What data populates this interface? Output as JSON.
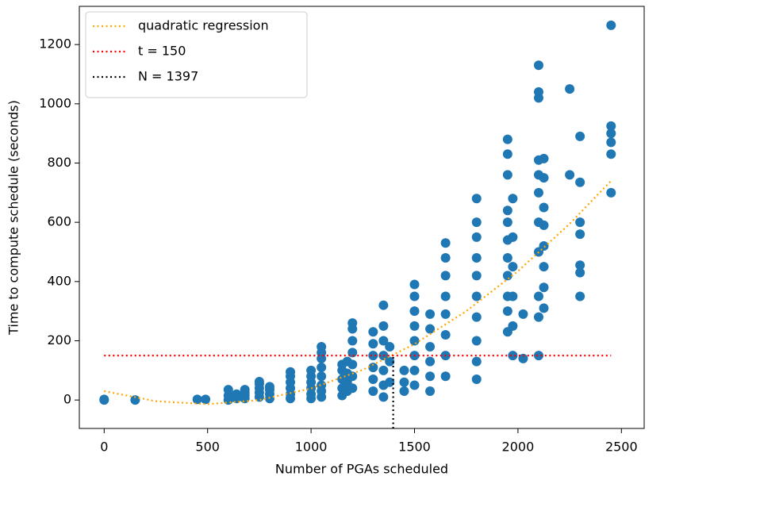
{
  "chart_data": {
    "type": "scatter",
    "xlabel": "Number of PGAs scheduled",
    "ylabel": "Time to compute schedule (seconds)",
    "xlim": [
      -120,
      2610
    ],
    "ylim": [
      -96,
      1329
    ],
    "xticks": [
      0,
      500,
      1000,
      1500,
      2000,
      2500
    ],
    "yticks": [
      0,
      200,
      400,
      600,
      800,
      1000,
      1200
    ],
    "legend": "upper left",
    "series": [
      {
        "kind": "scatter",
        "color": "#1f77b4",
        "x": [
          0,
          0,
          150,
          450,
          490,
          600,
          600,
          600,
          640,
          640,
          680,
          680,
          680,
          680,
          750,
          750,
          750,
          750,
          750,
          800,
          800,
          800,
          800,
          900,
          900,
          900,
          900,
          900,
          900,
          1000,
          1000,
          1000,
          1000,
          1000,
          1000,
          1050,
          1050,
          1050,
          1050,
          1050,
          1050,
          1050,
          1050,
          1150,
          1150,
          1150,
          1150,
          1150,
          1175,
          1175,
          1175,
          1175,
          1200,
          1200,
          1200,
          1200,
          1200,
          1200,
          1200,
          1300,
          1300,
          1300,
          1300,
          1300,
          1300,
          1350,
          1350,
          1350,
          1350,
          1350,
          1350,
          1350,
          1380,
          1380,
          1380,
          1450,
          1450,
          1450,
          1500,
          1500,
          1500,
          1500,
          1500,
          1500,
          1500,
          1500,
          1575,
          1575,
          1575,
          1575,
          1575,
          1575,
          1650,
          1650,
          1650,
          1650,
          1650,
          1650,
          1650,
          1650,
          1800,
          1800,
          1800,
          1800,
          1800,
          1800,
          1800,
          1800,
          1800,
          1800,
          1950,
          1950,
          1950,
          1950,
          1950,
          1950,
          1950,
          1950,
          1950,
          1950,
          1950,
          1975,
          1975,
          1975,
          1975,
          1975,
          1975,
          2025,
          2025,
          2100,
          2100,
          2100,
          2100,
          2100,
          2100,
          2100,
          2100,
          2100,
          2100,
          2100,
          2125,
          2125,
          2125,
          2125,
          2125,
          2125,
          2125,
          2125,
          2250,
          2250,
          2300,
          2300,
          2300,
          2300,
          2300,
          2300,
          2300,
          2450,
          2450,
          2450,
          2450,
          2450,
          2450
        ],
        "values": [
          0,
          2,
          0,
          2,
          2,
          0,
          15,
          35,
          5,
          20,
          5,
          15,
          25,
          35,
          10,
          25,
          40,
          55,
          62,
          5,
          20,
          35,
          45,
          5,
          20,
          40,
          60,
          80,
          95,
          5,
          20,
          40,
          60,
          80,
          100,
          10,
          30,
          50,
          80,
          110,
          140,
          160,
          180,
          15,
          40,
          70,
          100,
          120,
          30,
          60,
          90,
          130,
          40,
          80,
          120,
          160,
          200,
          240,
          260,
          30,
          70,
          110,
          150,
          190,
          230,
          10,
          50,
          100,
          150,
          200,
          250,
          320,
          60,
          130,
          180,
          30,
          60,
          100,
          50,
          100,
          150,
          200,
          250,
          300,
          350,
          390,
          30,
          80,
          130,
          180,
          240,
          290,
          80,
          150,
          220,
          290,
          350,
          420,
          480,
          530,
          70,
          130,
          200,
          280,
          350,
          420,
          480,
          550,
          600,
          680,
          230,
          300,
          350,
          420,
          480,
          540,
          600,
          640,
          760,
          830,
          880,
          150,
          250,
          350,
          450,
          550,
          680,
          140,
          290,
          150,
          280,
          350,
          500,
          600,
          700,
          760,
          810,
          1020,
          1040,
          1130,
          310,
          380,
          450,
          520,
          590,
          650,
          750,
          815,
          760,
          1050,
          350,
          430,
          455,
          560,
          600,
          735,
          890,
          700,
          830,
          870,
          900,
          925,
          1265
        ]
      },
      {
        "kind": "line",
        "name": "quadratic regression",
        "color": "#ffa500",
        "x": [
          0,
          250,
          500,
          750,
          1000,
          1250,
          1500,
          1750,
          2000,
          2250,
          2450
        ],
        "values": [
          30,
          -4,
          -14,
          0,
          39,
          102,
          189,
          300,
          435,
          595,
          740
        ]
      },
      {
        "kind": "line",
        "name": "t = 150",
        "color": "#ff0000",
        "x": [
          0,
          2450
        ],
        "values": [
          150,
          150
        ]
      },
      {
        "kind": "line",
        "name": "N = 1397",
        "color": "#000000",
        "x": [
          1397,
          1397
        ],
        "values": [
          -96,
          150
        ]
      }
    ]
  }
}
